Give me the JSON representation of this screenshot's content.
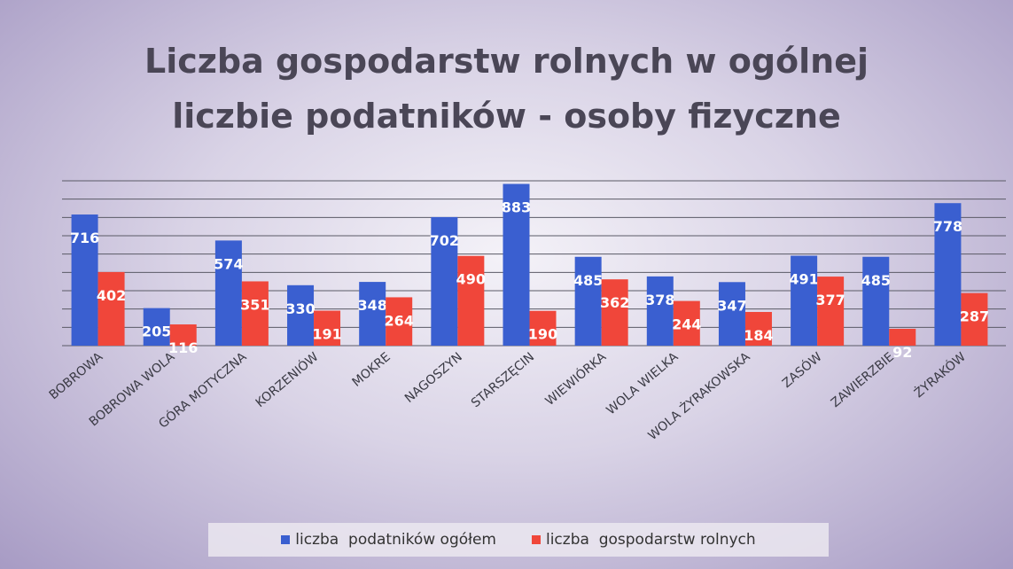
{
  "chart_data": {
    "type": "bar",
    "title": "Liczba gospodarstw rolnych w ogólnej liczbie podatników - osoby fizyczne",
    "categories": [
      "BOBROWA",
      "BOBROWA WOLA",
      "GÓRA MOTYCZNA",
      "KORZENIÓW",
      "MOKRE",
      "NAGOSZYN",
      "STARSZĘCIN",
      "WIEWIÓRKA",
      "WOLA WIELKA",
      "WOLA ŻYRAKOWSKA",
      "ZASÓW",
      "ZAWIERZBIE",
      "ŻYRAKÓW"
    ],
    "series": [
      {
        "name": "liczba  podatników ogółem",
        "color": "#3a5fd0",
        "values": [
          716,
          205,
          574,
          330,
          348,
          702,
          883,
          485,
          378,
          347,
          491,
          485,
          778
        ]
      },
      {
        "name": "liczba  gospodarstw rolnych",
        "color": "#f0463a",
        "values": [
          402,
          116,
          351,
          191,
          264,
          490,
          190,
          362,
          244,
          184,
          377,
          92,
          287
        ]
      }
    ],
    "ylim": [
      0,
      900
    ],
    "yticks": [
      0,
      100,
      200,
      300,
      400,
      500,
      600,
      700,
      800,
      900
    ],
    "grid": true,
    "legend": "bottom"
  }
}
